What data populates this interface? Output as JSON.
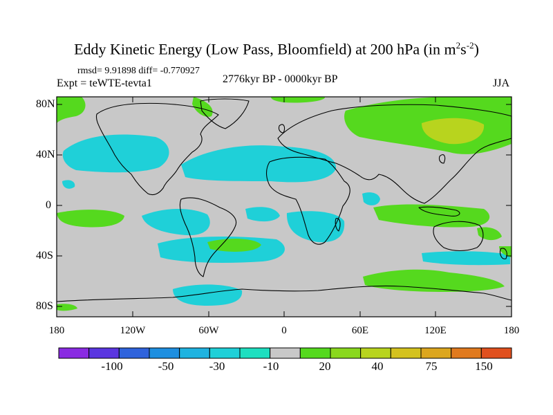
{
  "title": {
    "main": "Eddy Kinetic Energy (Low Pass, Bloomfield) at 200 hPa (in m",
    "sup1": "2",
    "mid": "s",
    "sup2": "-2",
    "end": ")"
  },
  "stats": "rmsd= 9.91898  diff= -0.770927",
  "expt": "Expt = teWTE-tevta1",
  "period": "2776kyr BP - 0000kyr BP",
  "season": "JJA",
  "map": {
    "lon_ticks": [
      "180",
      "120W",
      "60W",
      "0",
      "60E",
      "120E",
      "180"
    ],
    "lat_ticks": [
      "80N",
      "40N",
      "0",
      "40S",
      "80S"
    ]
  },
  "colorbar": {
    "colors": [
      "#8a2be2",
      "#5a36e0",
      "#2f63dc",
      "#1e8fe0",
      "#1fb3e0",
      "#1fd0d8",
      "#1edfc0",
      "#c8c8c8",
      "#55d91e",
      "#8ad81e",
      "#b8d41e",
      "#d4c21e",
      "#dca61e",
      "#e07a1e",
      "#e0501e"
    ],
    "labels": [
      "-100",
      "-50",
      "-30",
      "-10",
      "20",
      "40",
      "75",
      "150"
    ]
  },
  "colors": {
    "land_mask": "#c8c8c8",
    "negative": "#1fd0d8",
    "positive": "#55d91e",
    "strong_positive": "#b8d41e",
    "coastline": "#000000"
  }
}
